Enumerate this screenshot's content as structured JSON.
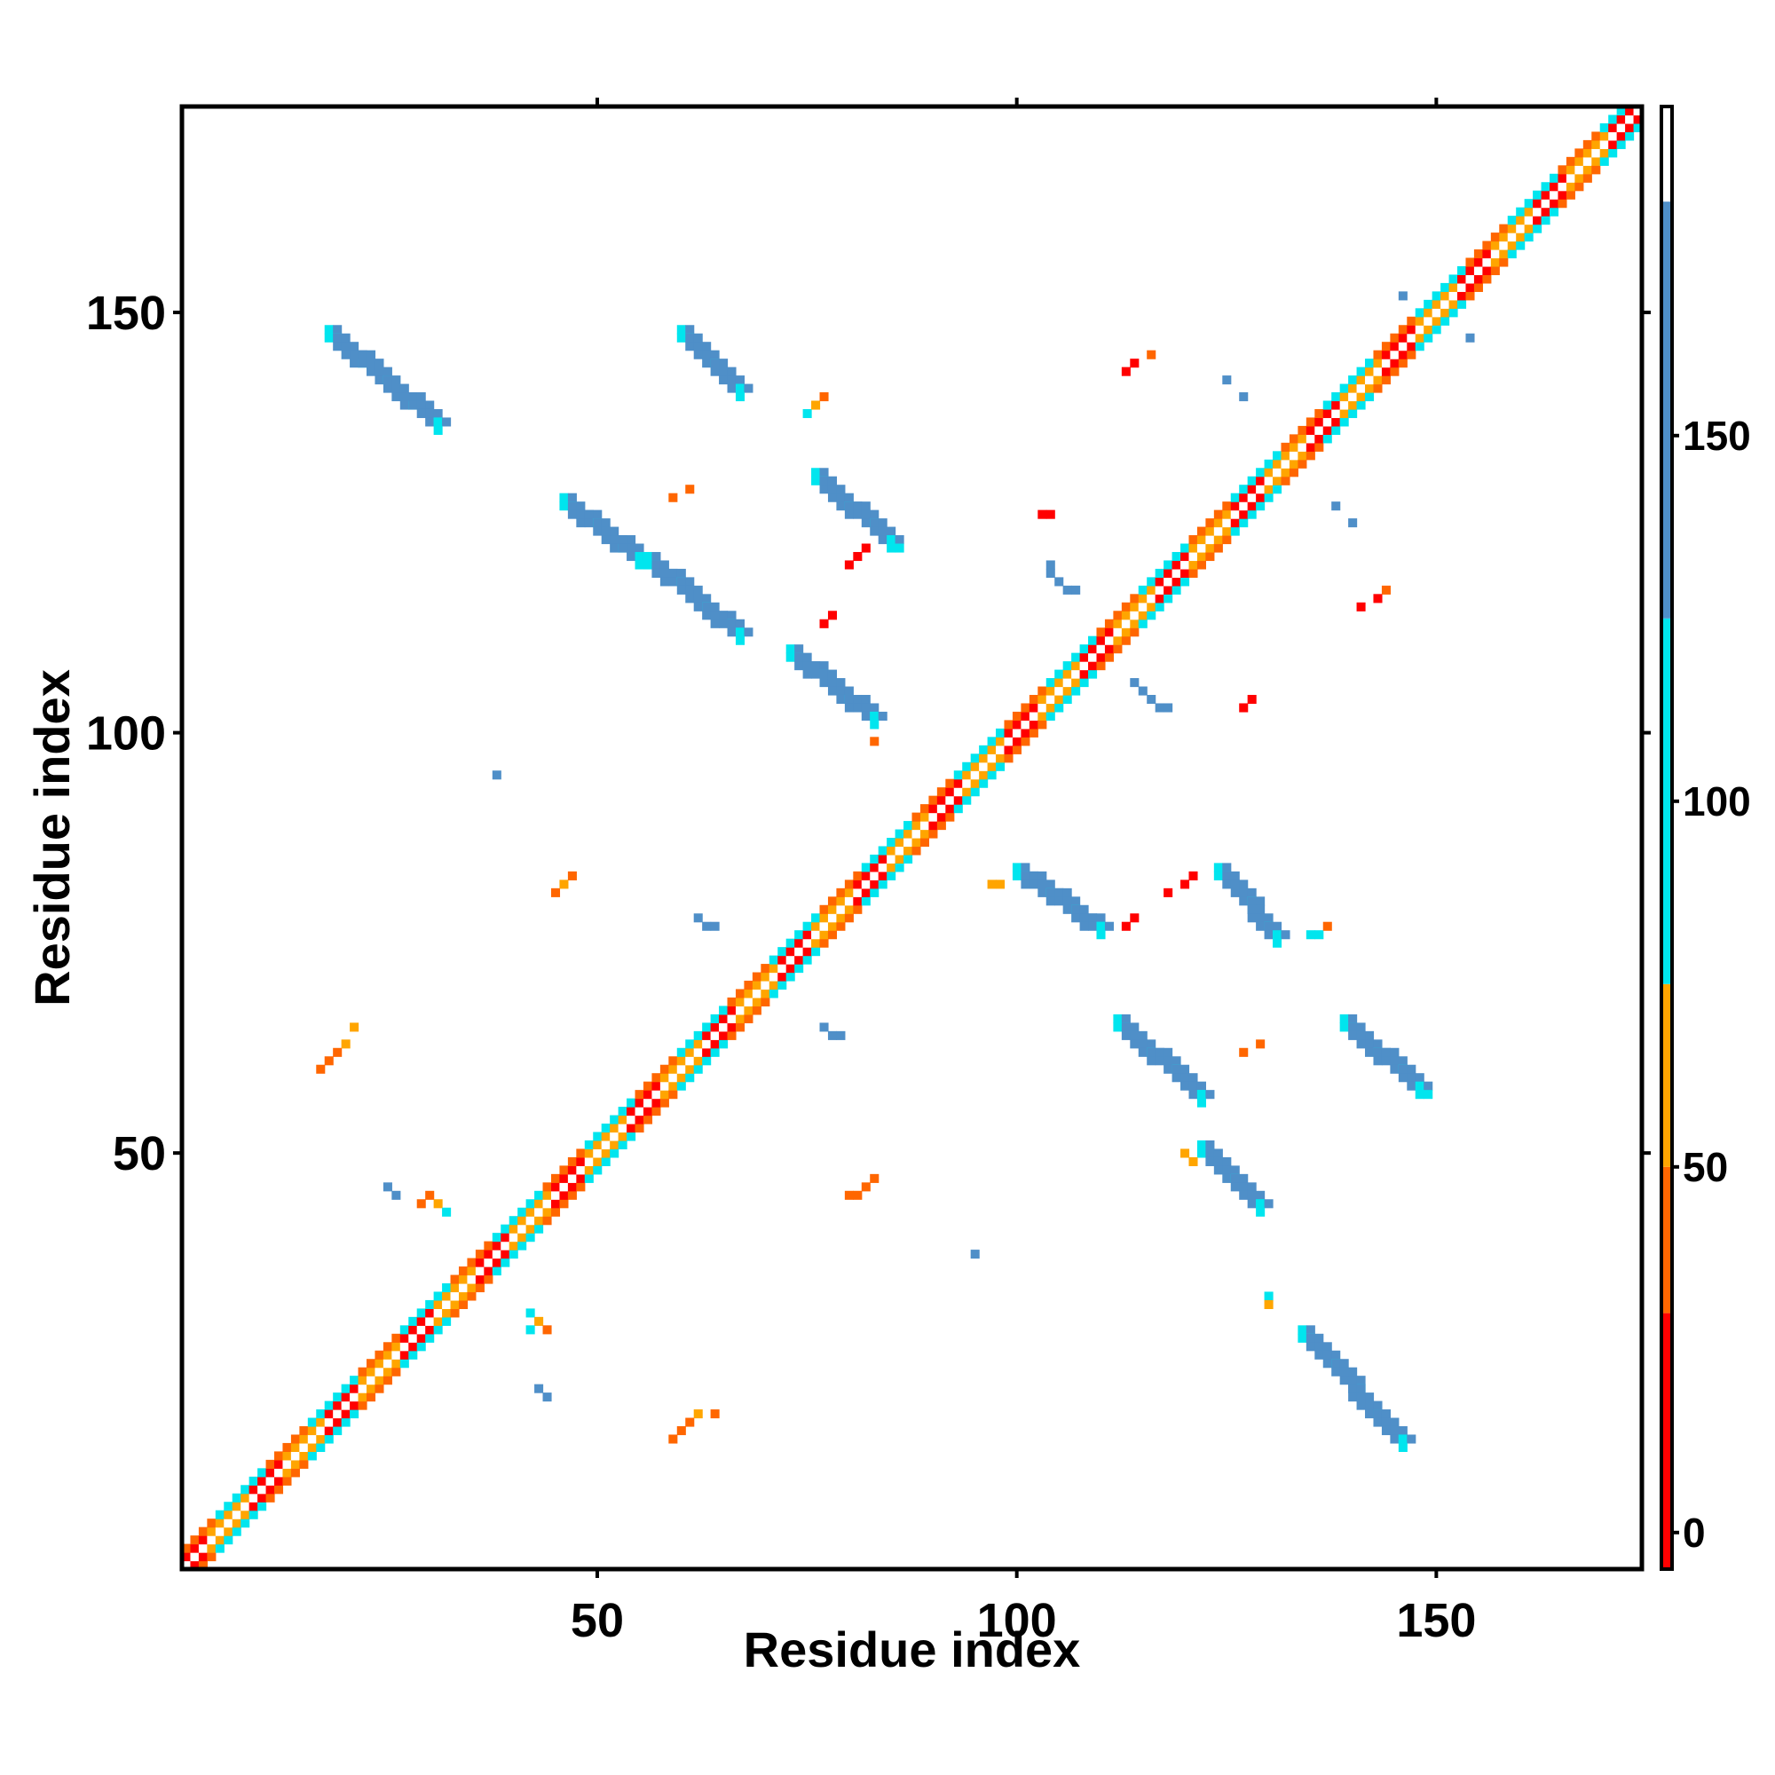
{
  "chart_data": {
    "type": "heatmap",
    "title": "",
    "xlabel": "Residue index",
    "ylabel": "Residue index",
    "xlim": [
      1,
      174
    ],
    "ylim": [
      1,
      174
    ],
    "x_ticks": [
      50,
      100,
      150
    ],
    "y_ticks": [
      50,
      100,
      150
    ],
    "grid": false,
    "colorbar": {
      "placement": "right",
      "range": [
        -5,
        195
      ],
      "ticks": [
        0,
        50,
        100,
        150
      ],
      "bands": [
        {
          "from": -5,
          "to": 30,
          "color": "#ff0000"
        },
        {
          "from": 30,
          "to": 50,
          "color": "#ff6600"
        },
        {
          "from": 50,
          "to": 75,
          "color": "#ffa500"
        },
        {
          "from": 75,
          "to": 125,
          "color": "#00e5ee"
        },
        {
          "from": 125,
          "to": 182,
          "color": "#4f8fc8"
        },
        {
          "from": 182,
          "to": 195,
          "color": "#ffffff"
        }
      ]
    },
    "diagonal": {
      "from": 1,
      "to": 174,
      "band_width": 2
    },
    "strands": [
      {
        "x": [
          18,
          31
        ],
        "y": [
          148,
          137
        ],
        "value": 150
      },
      {
        "x": [
          60,
          67
        ],
        "y": [
          148,
          141
        ],
        "value": 150
      },
      {
        "x": [
          46,
          55
        ],
        "y": [
          128,
          121
        ],
        "value": 150
      },
      {
        "x": [
          56,
          67
        ],
        "y": [
          121,
          112
        ],
        "value": 145
      },
      {
        "x": [
          76,
          85
        ],
        "y": [
          131,
          123
        ],
        "value": 150
      },
      {
        "x": [
          73,
          83
        ],
        "y": [
          110,
          102
        ],
        "value": 150
      },
      {
        "x": [
          100,
          110
        ],
        "y": [
          84,
          77
        ],
        "value": 150
      },
      {
        "x": [
          124,
          131
        ],
        "y": [
          84,
          76
        ],
        "value": 150
      },
      {
        "x": [
          112,
          122
        ],
        "y": [
          66,
          57
        ],
        "value": 150
      },
      {
        "x": [
          139,
          148
        ],
        "y": [
          66,
          58
        ],
        "value": 150
      },
      {
        "x": [
          122,
          129
        ],
        "y": [
          51,
          44
        ],
        "value": 150
      },
      {
        "x": [
          134,
          146
        ],
        "y": [
          29,
          16
        ],
        "value": 150
      }
    ],
    "points": [
      {
        "x": 29,
        "y": 44,
        "value": 40
      },
      {
        "x": 30,
        "y": 45,
        "value": 40
      },
      {
        "x": 31,
        "y": 44,
        "value": 60
      },
      {
        "x": 32,
        "y": 43,
        "value": 100
      },
      {
        "x": 25,
        "y": 46,
        "value": 150
      },
      {
        "x": 26,
        "y": 45,
        "value": 150
      },
      {
        "x": 42,
        "y": 31,
        "value": 100
      },
      {
        "x": 43,
        "y": 30,
        "value": 60
      },
      {
        "x": 44,
        "y": 29,
        "value": 40
      },
      {
        "x": 42,
        "y": 29,
        "value": 100
      },
      {
        "x": 43,
        "y": 22,
        "value": 150
      },
      {
        "x": 44,
        "y": 21,
        "value": 150
      },
      {
        "x": 59,
        "y": 16,
        "value": 40
      },
      {
        "x": 60,
        "y": 17,
        "value": 40
      },
      {
        "x": 61,
        "y": 18,
        "value": 40
      },
      {
        "x": 62,
        "y": 19,
        "value": 60
      },
      {
        "x": 64,
        "y": 19,
        "value": 40
      },
      {
        "x": 17,
        "y": 60,
        "value": 40
      },
      {
        "x": 18,
        "y": 61,
        "value": 40
      },
      {
        "x": 19,
        "y": 62,
        "value": 40
      },
      {
        "x": 20,
        "y": 63,
        "value": 60
      },
      {
        "x": 21,
        "y": 65,
        "value": 60
      },
      {
        "x": 45,
        "y": 81,
        "value": 40
      },
      {
        "x": 46,
        "y": 82,
        "value": 60
      },
      {
        "x": 47,
        "y": 83,
        "value": 40
      },
      {
        "x": 38,
        "y": 95,
        "value": 150
      },
      {
        "x": 62,
        "y": 78,
        "value": 150
      },
      {
        "x": 63,
        "y": 77,
        "value": 150
      },
      {
        "x": 64,
        "y": 77,
        "value": 150
      },
      {
        "x": 77,
        "y": 65,
        "value": 150
      },
      {
        "x": 78,
        "y": 64,
        "value": 150
      },
      {
        "x": 79,
        "y": 64,
        "value": 150
      },
      {
        "x": 80,
        "y": 45,
        "value": 40
      },
      {
        "x": 81,
        "y": 45,
        "value": 40
      },
      {
        "x": 82,
        "y": 46,
        "value": 40
      },
      {
        "x": 83,
        "y": 47,
        "value": 40
      },
      {
        "x": 95,
        "y": 38,
        "value": 150
      },
      {
        "x": 59,
        "y": 128,
        "value": 40
      },
      {
        "x": 61,
        "y": 129,
        "value": 40
      },
      {
        "x": 75,
        "y": 138,
        "value": 100
      },
      {
        "x": 76,
        "y": 139,
        "value": 60
      },
      {
        "x": 77,
        "y": 140,
        "value": 40
      },
      {
        "x": 80,
        "y": 120,
        "value": 10
      },
      {
        "x": 81,
        "y": 121,
        "value": 10
      },
      {
        "x": 82,
        "y": 122,
        "value": 10
      },
      {
        "x": 77,
        "y": 113,
        "value": 10
      },
      {
        "x": 78,
        "y": 114,
        "value": 10
      },
      {
        "x": 83,
        "y": 99,
        "value": 40
      },
      {
        "x": 103,
        "y": 126,
        "value": 10
      },
      {
        "x": 104,
        "y": 126,
        "value": 10
      },
      {
        "x": 113,
        "y": 143,
        "value": 10
      },
      {
        "x": 114,
        "y": 144,
        "value": 10
      },
      {
        "x": 116,
        "y": 145,
        "value": 40
      },
      {
        "x": 104,
        "y": 120,
        "value": 150
      },
      {
        "x": 104,
        "y": 119,
        "value": 150
      },
      {
        "x": 105,
        "y": 118,
        "value": 150
      },
      {
        "x": 106,
        "y": 117,
        "value": 150
      },
      {
        "x": 107,
        "y": 117,
        "value": 150
      },
      {
        "x": 114,
        "y": 106,
        "value": 150
      },
      {
        "x": 115,
        "y": 105,
        "value": 150
      },
      {
        "x": 116,
        "y": 104,
        "value": 150
      },
      {
        "x": 117,
        "y": 103,
        "value": 150
      },
      {
        "x": 118,
        "y": 103,
        "value": 150
      },
      {
        "x": 127,
        "y": 103,
        "value": 10
      },
      {
        "x": 128,
        "y": 104,
        "value": 10
      },
      {
        "x": 125,
        "y": 142,
        "value": 150
      },
      {
        "x": 127,
        "y": 140,
        "value": 150
      },
      {
        "x": 138,
        "y": 127,
        "value": 150
      },
      {
        "x": 140,
        "y": 125,
        "value": 150
      },
      {
        "x": 141,
        "y": 115,
        "value": 10
      },
      {
        "x": 143,
        "y": 116,
        "value": 10
      },
      {
        "x": 144,
        "y": 117,
        "value": 40
      },
      {
        "x": 146,
        "y": 152,
        "value": 150
      },
      {
        "x": 154,
        "y": 147,
        "value": 150
      },
      {
        "x": 97,
        "y": 82,
        "value": 60
      },
      {
        "x": 98,
        "y": 82,
        "value": 60
      },
      {
        "x": 113,
        "y": 77,
        "value": 10
      },
      {
        "x": 114,
        "y": 78,
        "value": 10
      },
      {
        "x": 118,
        "y": 81,
        "value": 10
      },
      {
        "x": 120,
        "y": 82,
        "value": 10
      },
      {
        "x": 121,
        "y": 83,
        "value": 10
      },
      {
        "x": 135,
        "y": 76,
        "value": 100
      },
      {
        "x": 136,
        "y": 76,
        "value": 100
      },
      {
        "x": 137,
        "y": 77,
        "value": 40
      },
      {
        "x": 127,
        "y": 62,
        "value": 40
      },
      {
        "x": 129,
        "y": 63,
        "value": 40
      },
      {
        "x": 120,
        "y": 50,
        "value": 60
      },
      {
        "x": 121,
        "y": 49,
        "value": 60
      },
      {
        "x": 130,
        "y": 33,
        "value": 100
      },
      {
        "x": 130,
        "y": 32,
        "value": 60
      }
    ]
  }
}
